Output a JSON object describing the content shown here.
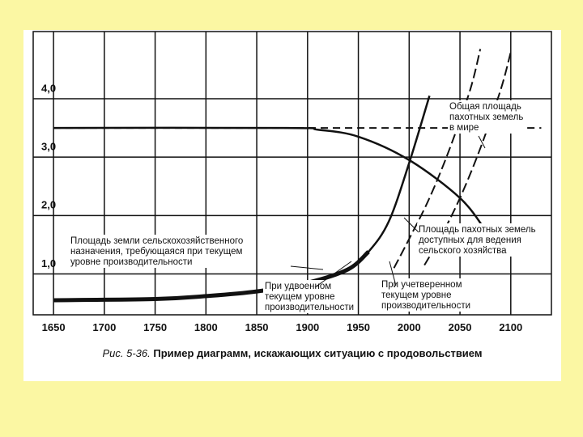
{
  "chart_data": {
    "type": "line",
    "title": "",
    "xlabel": "",
    "ylabel": "",
    "xlim": [
      1630,
      2140
    ],
    "ylim": [
      0,
      4.85
    ],
    "x_ticks": [
      1650,
      1700,
      1750,
      1800,
      1850,
      1900,
      1950,
      2000,
      2050,
      2100
    ],
    "x_tick_labels": [
      "1650",
      "1700",
      "1750",
      "1800",
      "1850",
      "1900",
      "1950",
      "2000",
      "2050",
      "2100"
    ],
    "y_ticks": [
      1.0,
      2.0,
      3.0,
      4.0
    ],
    "y_tick_labels": [
      "1,0",
      "2,0",
      "3,0",
      "4,0"
    ],
    "grid": true,
    "legend": "none",
    "series": [
      {
        "name": "Общая площадь пахотных земель в мире",
        "style": "dashed",
        "x": [
          1650,
          1900,
          2130
        ],
        "y": [
          3.2,
          3.2,
          3.2
        ]
      },
      {
        "name": "Площадь пахотных земель доступных для ведения сельского хозяйства",
        "style": "solid",
        "x": [
          1650,
          1880,
          1910,
          1950,
          2000,
          2050,
          2075
        ],
        "y": [
          3.2,
          3.2,
          3.17,
          3.05,
          2.65,
          2.0,
          1.45
        ]
      },
      {
        "name": "Площадь земли сельскохозяйственного назначения, требующаяся при текущем уровне производительности",
        "style": "solid",
        "x": [
          1650,
          1750,
          1800,
          1850,
          1900,
          1940,
          1960,
          1980,
          2000,
          2020
        ],
        "y": [
          0.25,
          0.27,
          0.32,
          0.4,
          0.55,
          0.78,
          1.08,
          1.6,
          2.6,
          3.75
        ]
      },
      {
        "name": "При удвоенном текущем уровне производительности",
        "style": "dashed",
        "x": [
          1985,
          2000,
          2020,
          2040,
          2060,
          2070
        ],
        "y": [
          0.8,
          1.3,
          2.0,
          2.85,
          3.85,
          4.55
        ]
      },
      {
        "name": "При учетверенном текущем уровне производительности",
        "style": "dashed",
        "x": [
          2015,
          2030,
          2050,
          2070,
          2090,
          2100
        ],
        "y": [
          0.85,
          1.3,
          2.0,
          2.85,
          3.85,
          4.5
        ]
      }
    ],
    "annotations": [
      {
        "lines": [
          "Общая площадь",
          "пахотных земель",
          "в мире"
        ]
      },
      {
        "lines": [
          "Площадь пахотных земель",
          "доступных для ведения",
          "сельского хозяйства"
        ]
      },
      {
        "lines": [
          "Площадь земли сельскохозяйственного",
          "назначения, требующаяся при текущем",
          "уровне производительности"
        ]
      },
      {
        "lines": [
          "При удвоенном",
          "текущем уровне",
          "производительности"
        ]
      },
      {
        "lines": [
          "При учетверенном",
          "текущем уровне",
          "производительности"
        ]
      }
    ]
  },
  "caption": {
    "figure_number": "Рис. 5-36.",
    "text": " Пример диаграмм, искажающих ситуацию с продовольствием"
  }
}
